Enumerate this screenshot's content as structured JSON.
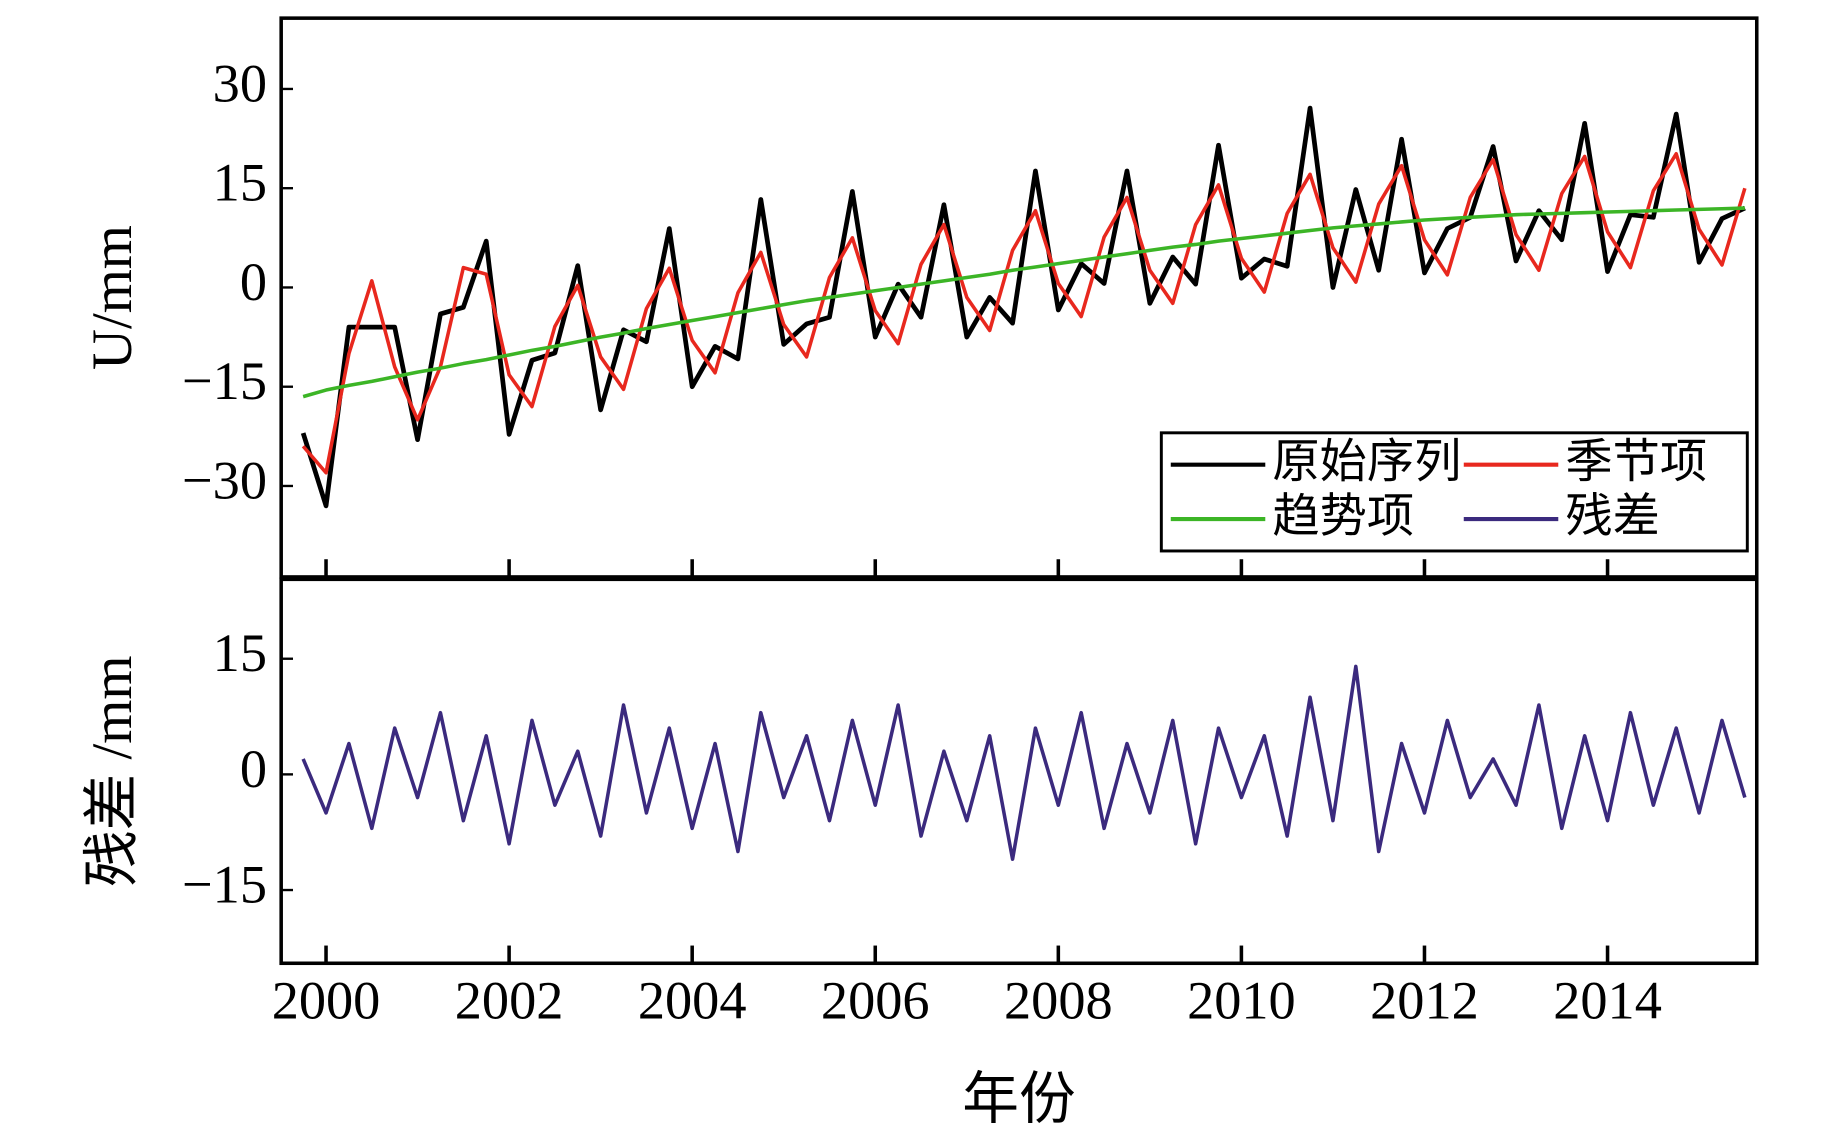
{
  "chart_data": [
    {
      "type": "line",
      "y_label": "U/mm",
      "legend": "lower right",
      "x": [
        1999.75,
        2000,
        2000.25,
        2000.5,
        2000.75,
        2001,
        2001.25,
        2001.5,
        2001.75,
        2002,
        2002.25,
        2002.5,
        2002.75,
        2003,
        2003.25,
        2003.5,
        2003.75,
        2004,
        2004.25,
        2004.5,
        2004.75,
        2005,
        2005.25,
        2005.5,
        2005.75,
        2006,
        2006.25,
        2006.5,
        2006.75,
        2007,
        2007.25,
        2007.5,
        2007.75,
        2008,
        2008.25,
        2008.5,
        2008.75,
        2009,
        2009.25,
        2009.5,
        2009.75,
        2010,
        2010.25,
        2010.5,
        2010.75,
        2011,
        2011.25,
        2011.5,
        2011.75,
        2012,
        2012.25,
        2012.5,
        2012.75,
        2013,
        2013.25,
        2013.5,
        2013.75,
        2014,
        2014.25,
        2014.5,
        2014.75,
        2015,
        2015.25,
        2015.5
      ],
      "xlim": [
        1999.51,
        2015.63
      ],
      "xticks": [
        2000,
        2002,
        2004,
        2006,
        2008,
        2010,
        2012,
        2014
      ],
      "ylim": [
        -43.75,
        40.7
      ],
      "yticks": [
        {
          "value": -30,
          "label": "−30"
        },
        {
          "value": -15,
          "label": "−15"
        },
        0,
        15,
        30
      ],
      "series": [
        {
          "name": "原始序列",
          "color": "#000000",
          "values": [
            -22,
            -33,
            -6,
            -6,
            -6,
            -23,
            -4,
            -3,
            7,
            -22.2,
            -11,
            -9.9,
            3.3,
            -18.5,
            -6.4,
            -8.2,
            8.9,
            -15,
            -8.9,
            -10.8,
            13.3,
            -8.6,
            -5.5,
            -4.5,
            14.5,
            -7.5,
            0.5,
            -4.5,
            12.5,
            -7.5,
            -1.5,
            -5.4,
            17.6,
            -3.4,
            3.6,
            0.6,
            17.6,
            -2.4,
            4.6,
            0.5,
            21.5,
            1.4,
            4.3,
            3.2,
            27.1,
            0,
            14.8,
            2.6,
            22.4,
            2.2,
            8.9,
            10.6,
            21.3,
            4,
            11.6,
            7.2,
            24.8,
            2.4,
            11,
            10.6,
            26.2,
            3.8,
            10.4,
            12
          ]
        },
        {
          "name": "季节项",
          "color": "#e8281e",
          "values": [
            -24,
            -28,
            -10,
            1,
            -12,
            -20,
            -12,
            3,
            2,
            -13.2,
            -18,
            -5.9,
            0.3,
            -10.5,
            -15.4,
            -3.2,
            2.9,
            -8,
            -12.9,
            -0.8,
            5.3,
            -5.6,
            -10.5,
            1.5,
            7.5,
            -3.5,
            -8.5,
            3.5,
            9.5,
            -1.5,
            -6.5,
            5.6,
            11.6,
            0.6,
            -4.4,
            7.6,
            13.6,
            2.6,
            -2.4,
            9.5,
            15.5,
            4.4,
            -0.7,
            11.2,
            17.1,
            6,
            0.8,
            12.6,
            18.4,
            7.2,
            1.9,
            13.6,
            19.3,
            8,
            2.6,
            14.2,
            19.8,
            8.4,
            3,
            14.6,
            20.2,
            8.8,
            3.4,
            15
          ]
        },
        {
          "name": "趋势项",
          "color": "#3cb526",
          "values": [
            -16.5,
            -15.5,
            -14.8,
            -14.2,
            -13.5,
            -12.8,
            -12.2,
            -11.5,
            -10.9,
            -10.2,
            -9.5,
            -8.9,
            -8.2,
            -7.5,
            -6.9,
            -6.2,
            -5.6,
            -5,
            -4.4,
            -3.8,
            -3.2,
            -2.6,
            -2,
            -1.5,
            -1,
            -0.5,
            0,
            0.5,
            1,
            1.5,
            2,
            2.6,
            3.1,
            3.6,
            4.1,
            4.6,
            5.1,
            5.6,
            6.1,
            6.5,
            7,
            7.4,
            7.8,
            8.2,
            8.6,
            9,
            9.3,
            9.6,
            9.9,
            10.2,
            10.4,
            10.6,
            10.8,
            11,
            11.1,
            11.2,
            11.3,
            11.4,
            11.5,
            11.6,
            11.7,
            11.8,
            11.9,
            12
          ]
        }
      ]
    },
    {
      "type": "line",
      "y_label": "残差 /mm",
      "x_label": "年份",
      "x": [
        1999.75,
        2000,
        2000.25,
        2000.5,
        2000.75,
        2001,
        2001.25,
        2001.5,
        2001.75,
        2002,
        2002.25,
        2002.5,
        2002.75,
        2003,
        2003.25,
        2003.5,
        2003.75,
        2004,
        2004.25,
        2004.5,
        2004.75,
        2005,
        2005.25,
        2005.5,
        2005.75,
        2006,
        2006.25,
        2006.5,
        2006.75,
        2007,
        2007.25,
        2007.5,
        2007.75,
        2008,
        2008.25,
        2008.5,
        2008.75,
        2009,
        2009.25,
        2009.5,
        2009.75,
        2010,
        2010.25,
        2010.5,
        2010.75,
        2011,
        2011.25,
        2011.5,
        2011.75,
        2012,
        2012.25,
        2012.5,
        2012.75,
        2013,
        2013.25,
        2013.5,
        2013.75,
        2014,
        2014.25,
        2014.5,
        2014.75,
        2015,
        2015.25,
        2015.5
      ],
      "xlim": [
        1999.51,
        2015.63
      ],
      "xticks": [
        2000,
        2002,
        2004,
        2006,
        2008,
        2010,
        2012,
        2014
      ],
      "ylim": [
        -24.5,
        25.3
      ],
      "yticks": [
        {
          "value": -15,
          "label": "−15"
        },
        0,
        15
      ],
      "series": [
        {
          "name": "残差",
          "color": "#3b2a7e",
          "values": [
            2,
            -5,
            4,
            -7,
            6,
            -3,
            8,
            -6,
            5,
            -9,
            7,
            -4,
            3,
            -8,
            9,
            -5,
            6,
            -7,
            4,
            -10,
            8,
            -3,
            5,
            -6,
            7,
            -4,
            9,
            -8,
            3,
            -6,
            5,
            -11,
            6,
            -4,
            8,
            -7,
            4,
            -5,
            7,
            -9,
            6,
            -3,
            5,
            -8,
            10,
            -6,
            14,
            -10,
            4,
            -5,
            7,
            -3,
            2,
            -4,
            9,
            -7,
            5,
            -6,
            8,
            -4,
            6,
            -5,
            7,
            -3
          ]
        }
      ]
    }
  ]
}
